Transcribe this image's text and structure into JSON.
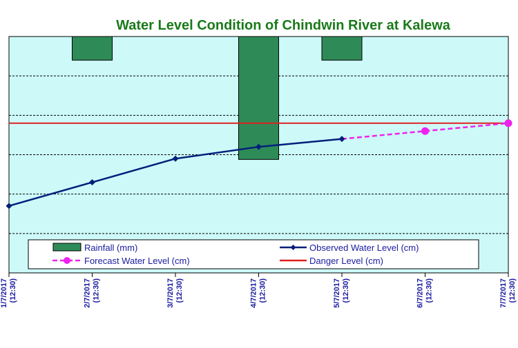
{
  "chart_data": {
    "type": "line",
    "title": "Water Level Condition of Chindwin River at Kalewa",
    "x": [
      "1/7/2017",
      "2/7/2017",
      "3/7/2017",
      "4/7/2017",
      "5/7/2017",
      "6/7/2017",
      "7/7/2017"
    ],
    "x_time": "(12:30)",
    "ylim": [
      0,
      6
    ],
    "rainfall_ylim_inverted": [
      0,
      50
    ],
    "grid": true,
    "legend_placement": "bottom",
    "series": [
      {
        "name": "Rainfall (mm)",
        "kind": "bar",
        "axis": "rainfall-inverted",
        "color": "#2e8b57",
        "x": [
          "1/7/2017",
          "2/7/2017",
          "3/7/2017",
          "4/7/2017",
          "5/7/2017",
          "6/7/2017",
          "7/7/2017"
        ],
        "values": [
          0,
          5,
          0,
          26,
          5,
          0,
          0
        ]
      },
      {
        "name": "Observed Water Level (cm)",
        "kind": "line",
        "color": "#001f7a",
        "marker": "diamond",
        "x": [
          "1/7/2017",
          "2/7/2017",
          "3/7/2017",
          "4/7/2017",
          "5/7/2017"
        ],
        "values": [
          1.7,
          2.3,
          2.9,
          3.2,
          3.4
        ]
      },
      {
        "name": "Forecast Water Level (cm)",
        "kind": "line",
        "color": "#ee22ee",
        "dashed": true,
        "marker": "circle",
        "x": [
          "5/7/2017",
          "6/7/2017",
          "7/7/2017"
        ],
        "values": [
          3.4,
          3.6,
          3.8
        ]
      },
      {
        "name": "Danger Level (cm)",
        "kind": "line",
        "color": "#e02020",
        "marker": "none",
        "x": [
          "1/7/2017",
          "7/7/2017"
        ],
        "values": [
          3.8,
          3.8
        ]
      }
    ]
  }
}
